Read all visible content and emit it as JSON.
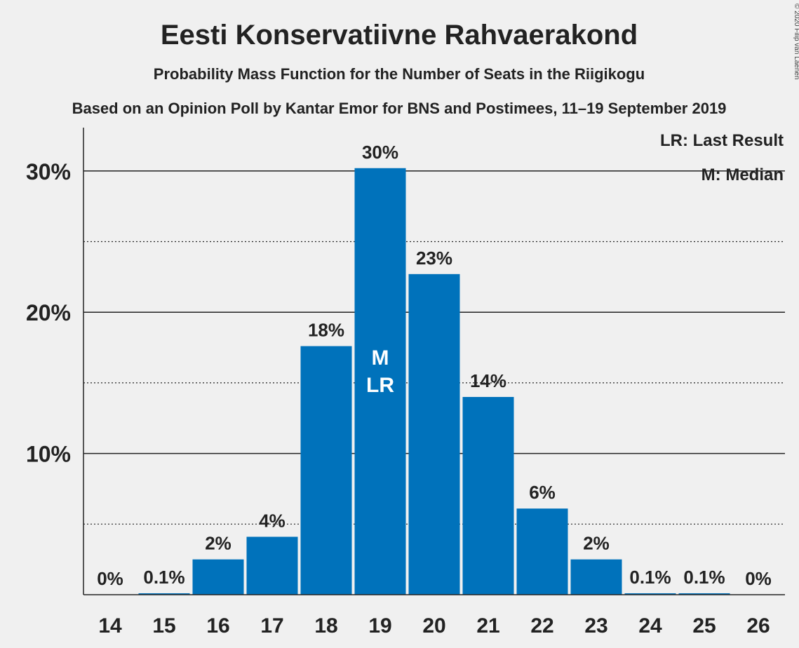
{
  "chart_data": {
    "type": "bar",
    "title": "Eesti Konservatiivne Rahvaerakond",
    "subtitle": "Probability Mass Function for the Number of Seats in the Riigikogu",
    "subtitle2": "Based on an Opinion Poll by Kantar Emor for BNS and Postimees, 11–19 September 2019",
    "copyright": "© 2020 Filip van Laenen",
    "categories": [
      "14",
      "15",
      "16",
      "17",
      "18",
      "19",
      "20",
      "21",
      "22",
      "23",
      "24",
      "25",
      "26"
    ],
    "values": [
      0,
      0.1,
      2.5,
      4.1,
      17.6,
      30.2,
      22.7,
      14.0,
      6.1,
      2.5,
      0.1,
      0.1,
      0
    ],
    "labels": [
      "0%",
      "0.1%",
      "2%",
      "4%",
      "18%",
      "30%",
      "23%",
      "14%",
      "6%",
      "2%",
      "0.1%",
      "0.1%",
      "0%"
    ],
    "yticks": [
      {
        "value": 10,
        "label": "10%"
      },
      {
        "value": 20,
        "label": "20%"
      },
      {
        "value": 30,
        "label": "30%"
      }
    ],
    "minor_gridlines": [
      5,
      15,
      25
    ],
    "ylim": [
      0,
      32.5
    ],
    "bar_color": "#0072bb",
    "median_index": 5,
    "last_result_index": 5,
    "median_mark": "M",
    "last_result_mark": "LR",
    "legend": {
      "last_result": "LR: Last Result",
      "median": "M: Median",
      "placement": "top-right"
    }
  }
}
